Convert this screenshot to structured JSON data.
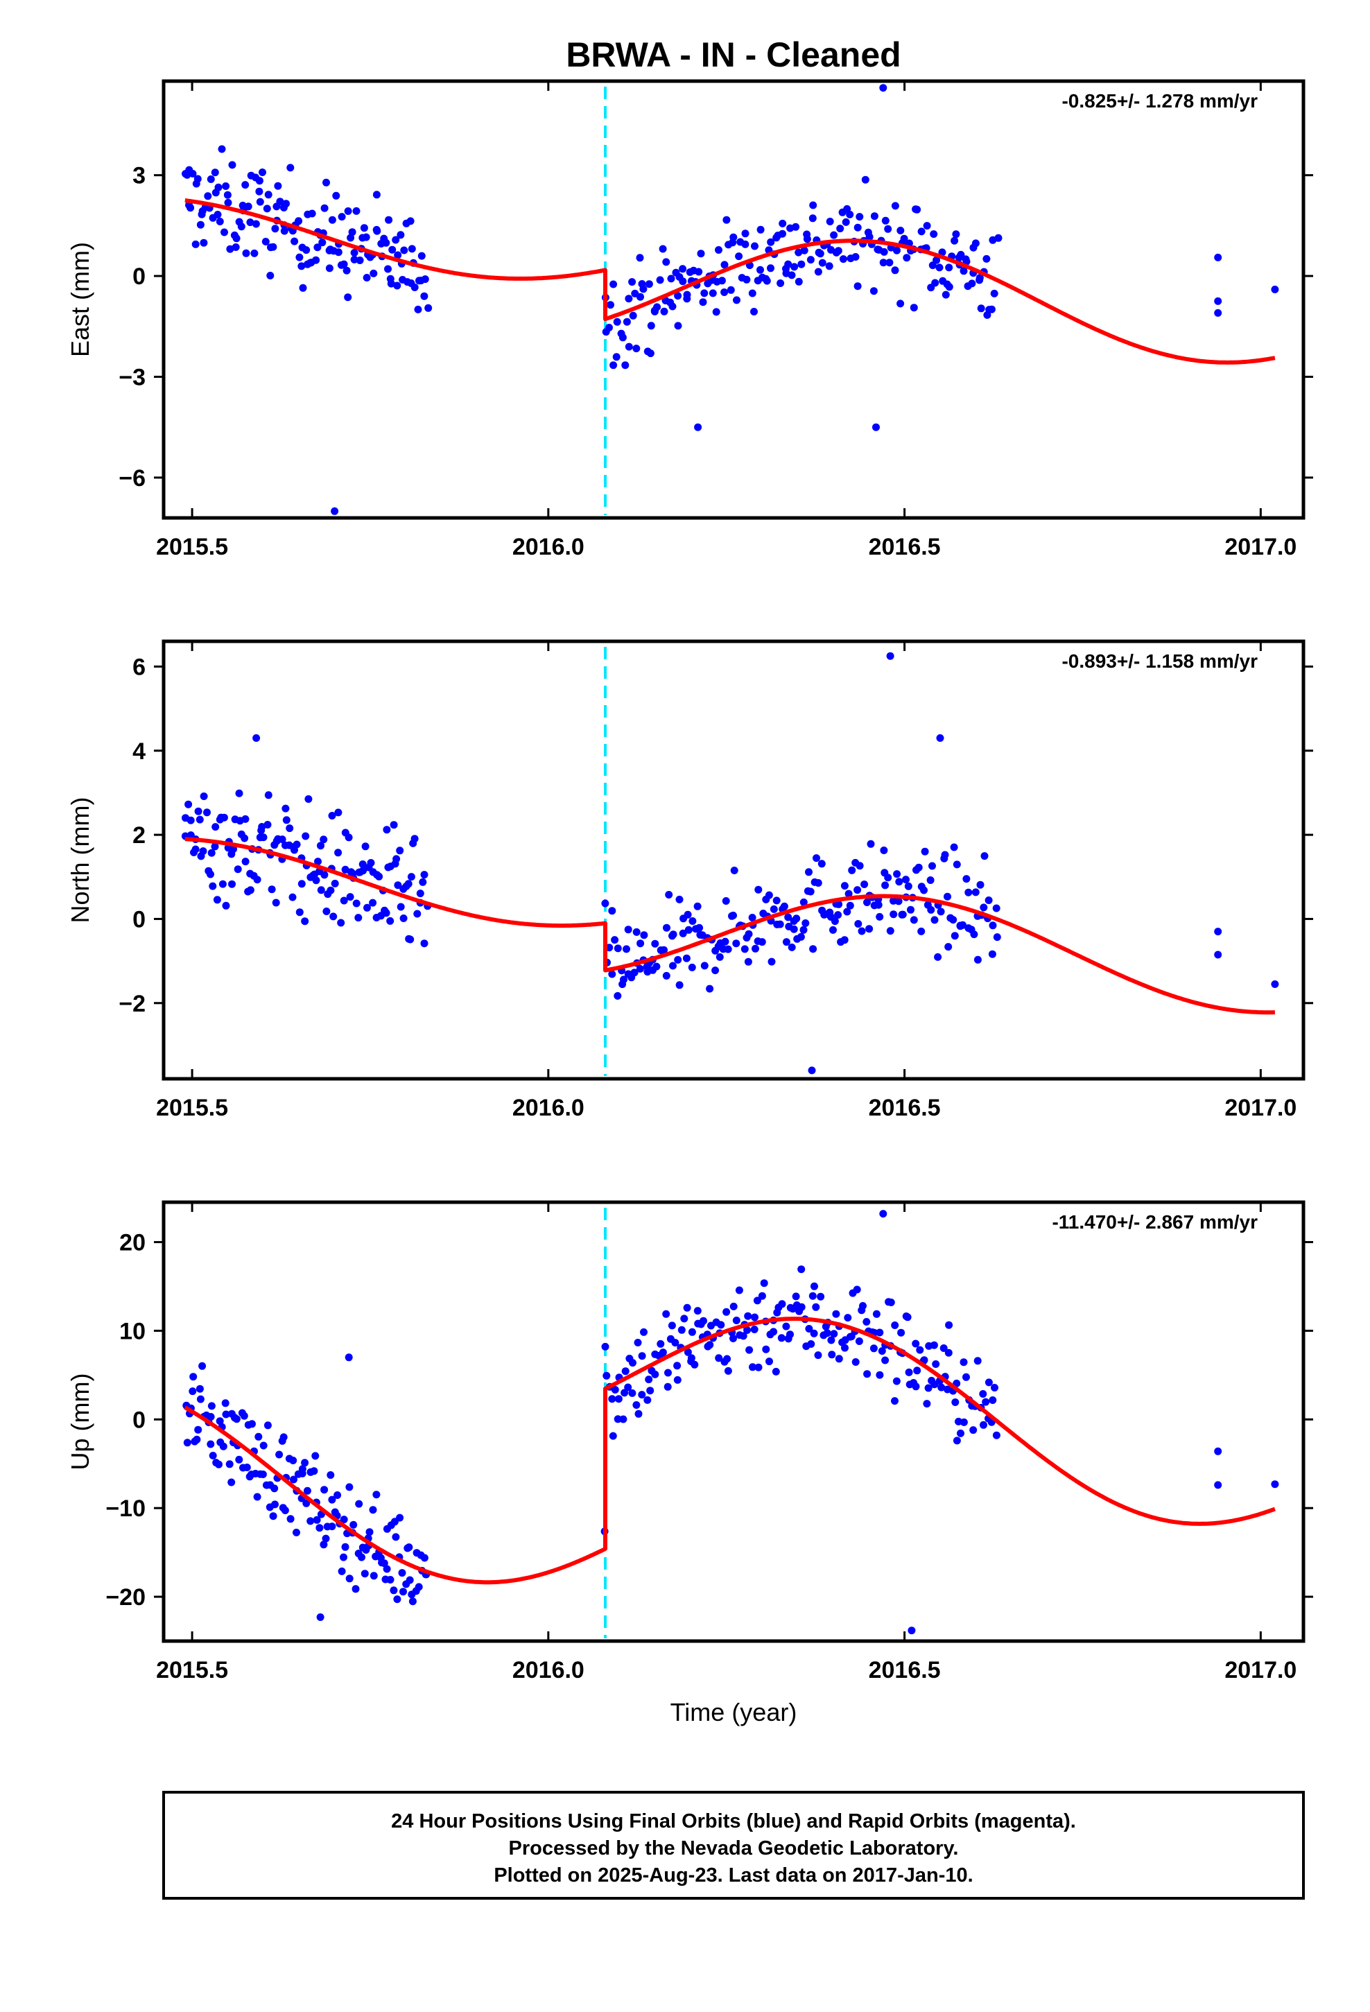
{
  "title": "BRWA  - IN - Cleaned",
  "colors": {
    "points": "#0000ff",
    "fit": "#ff0000",
    "event_line": "#00e5ff",
    "frame": "#000000"
  },
  "chart_data": [
    {
      "type": "scatter",
      "ylabel": "East (mm)",
      "xlabel": "",
      "rate": "-0.825+/- 1.278 mm/yr",
      "xlim": [
        2015.46,
        2017.06
      ],
      "ylim": [
        -7.2,
        5.8
      ],
      "xticks": [
        2015.5,
        2016.0,
        2016.5,
        2017.0
      ],
      "xtick_labels": [
        "2015.5",
        "2016.0",
        "2016.5",
        "2017.0"
      ],
      "yticks": [
        3,
        0,
        -3,
        -6
      ],
      "ytick_labels": [
        "3",
        "0",
        "−3",
        "−6"
      ],
      "event_lines": [
        2016.08
      ],
      "fit": {
        "segments": [
          {
            "x0": 2015.49,
            "x1": 2016.08,
            "t0": 2015.49,
            "offset": 1.3,
            "amplitude": 1.0,
            "phase_peak": 2015.44
          },
          {
            "x0": 2016.08,
            "x1": 2017.02,
            "t0": 2016.08,
            "offset": -0.26,
            "amplitude": 1.6,
            "phase_peak": 2016.44
          }
        ],
        "rate_per_year": -0.825
      },
      "points": {
        "segments": [
          {
            "x0": 2015.49,
            "x1": 2015.83,
            "n": 150,
            "noise": 1.2
          },
          {
            "x0": 2016.08,
            "x1": 2016.63,
            "n": 210,
            "noise": 1.1
          }
        ],
        "extra": [
          [
            2016.94,
            0.55
          ],
          [
            2016.94,
            -0.75
          ],
          [
            2016.94,
            -1.1
          ],
          [
            2017.02,
            -0.4
          ],
          [
            2015.7,
            -7.0
          ],
          [
            2016.47,
            5.6
          ],
          [
            2016.46,
            -4.5
          ],
          [
            2016.21,
            -4.5
          ]
        ]
      }
    },
    {
      "type": "scatter",
      "ylabel": "North (mm)",
      "xlabel": "",
      "rate": "-0.893+/- 1.158 mm/yr",
      "xlim": [
        2015.46,
        2017.06
      ],
      "ylim": [
        -3.8,
        6.6
      ],
      "xticks": [
        2015.5,
        2016.0,
        2016.5,
        2017.0
      ],
      "xtick_labels": [
        "2015.5",
        "2016.0",
        "2016.5",
        "2017.0"
      ],
      "yticks": [
        6,
        4,
        2,
        0,
        -2
      ],
      "ytick_labels": [
        "6",
        "4",
        "2",
        "0",
        "−2"
      ],
      "event_lines": [
        2016.08
      ],
      "fit": {
        "segments": [
          {
            "x0": 2015.49,
            "x1": 2016.08,
            "t0": 2015.49,
            "offset": 1.1,
            "amplitude": 0.8,
            "phase_peak": 2015.49
          },
          {
            "x0": 2016.08,
            "x1": 2017.02,
            "t0": 2016.08,
            "offset": -0.25,
            "amplitude": 1.15,
            "phase_peak": 2016.49
          }
        ],
        "rate_per_year": -0.893
      },
      "points": {
        "segments": [
          {
            "x0": 2015.49,
            "x1": 2015.83,
            "n": 150,
            "noise": 1.1
          },
          {
            "x0": 2016.08,
            "x1": 2016.63,
            "n": 210,
            "noise": 0.9
          }
        ],
        "extra": [
          [
            2016.94,
            -0.3
          ],
          [
            2016.94,
            -0.85
          ],
          [
            2017.02,
            -1.55
          ],
          [
            2016.48,
            6.25
          ],
          [
            2016.37,
            -3.6
          ],
          [
            2016.55,
            4.3
          ],
          [
            2015.59,
            4.3
          ]
        ]
      }
    },
    {
      "type": "scatter",
      "ylabel": "Up (mm)",
      "xlabel": "Time (year)",
      "rate": "-11.470+/- 2.867 mm/yr",
      "xlim": [
        2015.46,
        2017.06
      ],
      "ylim": [
        -25,
        24.5
      ],
      "xticks": [
        2015.5,
        2016.0,
        2016.5,
        2017.0
      ],
      "xtick_labels": [
        "2015.5",
        "2016.0",
        "2016.5",
        "2017.0"
      ],
      "yticks": [
        20,
        10,
        0,
        -10,
        -20
      ],
      "ytick_labels": [
        "20",
        "10",
        "0",
        "−10",
        "−20"
      ],
      "event_lines": [
        2016.08
      ],
      "fit": {
        "segments": [
          {
            "x0": 2015.49,
            "x1": 2016.08,
            "t0": 2015.49,
            "offset": -5.2,
            "amplitude": 8.5,
            "phase_peak": 2015.38
          },
          {
            "x0": 2016.08,
            "x1": 2017.02,
            "t0": 2016.08,
            "offset": 6.1,
            "amplitude": 8.5,
            "phase_peak": 2016.38
          }
        ],
        "rate_per_year": -11.47
      },
      "points": {
        "segments": [
          {
            "x0": 2015.49,
            "x1": 2015.83,
            "n": 150,
            "noise": 4.2
          },
          {
            "x0": 2016.08,
            "x1": 2016.63,
            "n": 210,
            "noise": 4.6
          }
        ],
        "extra": [
          [
            2016.94,
            -3.6
          ],
          [
            2016.94,
            -7.4
          ],
          [
            2017.02,
            -7.3
          ],
          [
            2016.08,
            8.2
          ],
          [
            2016.47,
            23.2
          ],
          [
            2016.51,
            -23.8
          ],
          [
            2015.72,
            7.0
          ],
          [
            2015.68,
            -22.3
          ]
        ]
      }
    }
  ],
  "caption": {
    "line1": "24 Hour Positions Using Final Orbits (blue) and Rapid Orbits (magenta).",
    "line2": "Processed by the Nevada Geodetic Laboratory.",
    "line3": "Plotted on 2025-Aug-23. Last data on 2017-Jan-10."
  }
}
